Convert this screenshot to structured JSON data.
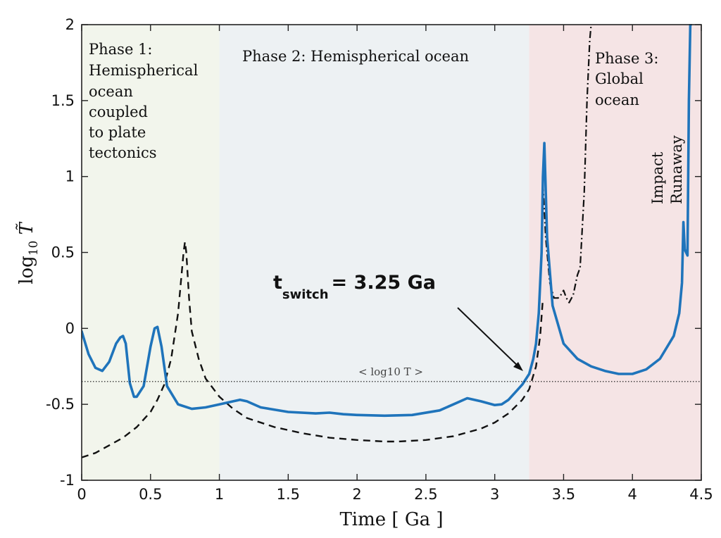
{
  "chart_data": {
    "type": "line",
    "xlabel": "Time [ Ga ]",
    "ylabel": "log10 T",
    "xlim": [
      0,
      4.5
    ],
    "ylim": [
      -1,
      2
    ],
    "x_ticks": [
      0,
      0.5,
      1,
      1.5,
      2,
      2.5,
      3,
      3.5,
      4,
      4.5
    ],
    "x_tick_labels": [
      "0",
      "0.5",
      "1",
      "1.5",
      "2",
      "2.5",
      "3",
      "3.5",
      "4",
      "4.5"
    ],
    "y_ticks": [
      -1,
      -0.5,
      0,
      0.5,
      1,
      1.5,
      2
    ],
    "y_tick_labels": [
      "-1",
      "-0.5",
      "0",
      "0.5",
      "1",
      "1.5",
      "2"
    ],
    "grid": false,
    "phases": [
      {
        "x0": 0,
        "x1": 1,
        "color": "#f2f5ec",
        "label_lines": [
          "Phase 1:",
          "Hemispherical",
          "ocean",
          "coupled",
          "to plate",
          "tectonics"
        ]
      },
      {
        "x0": 1,
        "x1": 3.25,
        "color": "#edf1f3",
        "label_lines": [
          "Phase 2: Hemispherical ocean"
        ]
      },
      {
        "x0": 3.25,
        "x1": 4.5,
        "color": "#f5e4e5",
        "label_lines": [
          "Phase 3:",
          "Global",
          "ocean"
        ]
      }
    ],
    "mean_line": {
      "y": -0.35,
      "label": "< log10 T >"
    },
    "annotations": {
      "switch_main": "t",
      "switch_sub": "switch",
      "switch_value": "= 3.25 Ga",
      "switch_arrow_to": [
        3.25,
        -0.28
      ],
      "impact": "Impact",
      "runaway": "Runaway"
    },
    "series": [
      {
        "style": "solid",
        "color": "#1f74bb",
        "x": [
          0,
          0.05,
          0.1,
          0.15,
          0.2,
          0.25,
          0.28,
          0.3,
          0.32,
          0.35,
          0.38,
          0.4,
          0.45,
          0.5,
          0.53,
          0.55,
          0.58,
          0.62,
          0.7,
          0.8,
          0.9,
          1.0,
          1.1,
          1.15,
          1.2,
          1.3,
          1.5,
          1.7,
          1.8,
          1.9,
          2.0,
          2.2,
          2.4,
          2.6,
          2.7,
          2.8,
          2.9,
          3.0,
          3.05,
          3.1,
          3.15,
          3.2,
          3.25,
          3.28,
          3.3,
          3.32,
          3.34,
          3.35,
          3.36,
          3.38,
          3.42,
          3.5,
          3.6,
          3.7,
          3.8,
          3.9,
          4.0,
          4.1,
          4.2,
          4.3,
          4.34,
          4.36,
          4.37,
          4.38,
          4.4,
          4.41,
          4.42,
          4.425
        ],
        "y": [
          -0.02,
          -0.17,
          -0.26,
          -0.28,
          -0.22,
          -0.1,
          -0.06,
          -0.05,
          -0.1,
          -0.36,
          -0.45,
          -0.45,
          -0.38,
          -0.12,
          0.0,
          0.01,
          -0.12,
          -0.38,
          -0.5,
          -0.53,
          -0.52,
          -0.5,
          -0.48,
          -0.47,
          -0.48,
          -0.52,
          -0.55,
          -0.56,
          -0.555,
          -0.565,
          -0.57,
          -0.575,
          -0.57,
          -0.54,
          -0.5,
          -0.46,
          -0.48,
          -0.505,
          -0.5,
          -0.47,
          -0.42,
          -0.37,
          -0.3,
          -0.2,
          -0.1,
          0.1,
          0.5,
          1.0,
          1.22,
          0.6,
          0.15,
          -0.1,
          -0.2,
          -0.25,
          -0.28,
          -0.3,
          -0.3,
          -0.27,
          -0.2,
          -0.05,
          0.1,
          0.3,
          0.7,
          0.52,
          0.48,
          1.5,
          2.0,
          2.0
        ]
      },
      {
        "style": "dashed",
        "color": "#111111",
        "x": [
          0,
          0.1,
          0.2,
          0.3,
          0.4,
          0.5,
          0.55,
          0.6,
          0.65,
          0.7,
          0.72,
          0.74,
          0.75,
          0.76,
          0.78,
          0.8,
          0.85,
          0.9,
          1.0,
          1.1,
          1.2,
          1.4,
          1.6,
          1.8,
          2.0,
          2.2,
          2.3,
          2.5,
          2.7,
          2.9,
          3.0,
          3.1,
          3.2,
          3.25,
          3.3,
          3.33,
          3.35
        ],
        "y": [
          -0.85,
          -0.82,
          -0.77,
          -0.72,
          -0.65,
          -0.55,
          -0.47,
          -0.37,
          -0.2,
          0.1,
          0.3,
          0.5,
          0.57,
          0.5,
          0.2,
          -0.02,
          -0.2,
          -0.33,
          -0.45,
          -0.53,
          -0.59,
          -0.65,
          -0.69,
          -0.72,
          -0.735,
          -0.745,
          -0.745,
          -0.735,
          -0.71,
          -0.66,
          -0.62,
          -0.56,
          -0.47,
          -0.4,
          -0.25,
          -0.05,
          0.2
        ]
      },
      {
        "style": "dashdot",
        "color": "#111111",
        "x": [
          3.35,
          3.37,
          3.4,
          3.43,
          3.46,
          3.48,
          3.5,
          3.52,
          3.54,
          3.57,
          3.6,
          3.62,
          3.65,
          3.67,
          3.69,
          3.7
        ],
        "y": [
          0.95,
          0.6,
          0.3,
          0.2,
          0.2,
          0.22,
          0.25,
          0.2,
          0.17,
          0.22,
          0.35,
          0.4,
          0.9,
          1.5,
          1.9,
          2.0
        ]
      }
    ]
  }
}
